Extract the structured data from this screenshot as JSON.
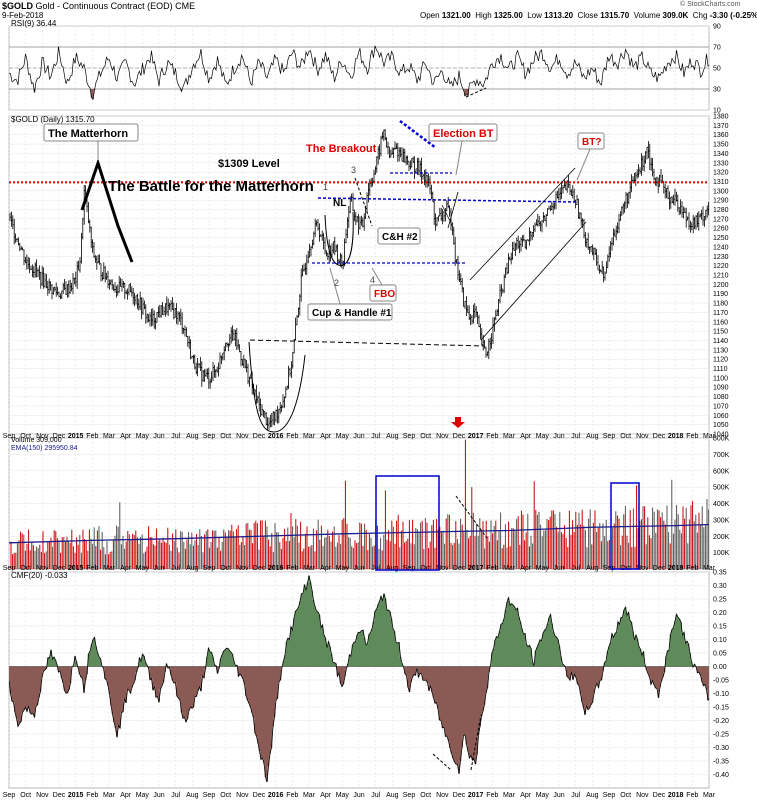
{
  "header": {
    "symbol": "$GOLD",
    "description": "Gold - Continuous Contract (EOD)",
    "exchange": "CME",
    "date": "9-Feb-2018",
    "open_label": "Open",
    "open": "1321.00",
    "high_label": "High",
    "high": "1325.00",
    "low_label": "Low",
    "low": "1313.20",
    "close_label": "Close",
    "close": "1315.70",
    "volume_label": "Volume",
    "volume": "309.0K",
    "chg_label": "Chg",
    "chg": "-3.30 (-0.25%)",
    "brand": "© StockCharts.com"
  },
  "panels": {
    "rsi_label": "RSI(9) 36.44",
    "price_label": "$GOLD (Daily) 1315.70",
    "volume_label": "Volume 309,000",
    "ema_label": "EMA(150) 295950.84",
    "cmf_label": "CMF(20) -0.033"
  },
  "annotations": {
    "matterhorn": "The Matterhorn",
    "level": "$1309 Level",
    "battle": "The Battle for the Matterhorn",
    "breakout": "The Breakout",
    "election_bt": "Election BT",
    "bt": "BT?",
    "nl": "NL",
    "ch2": "C&H #2",
    "fbo": "FBO",
    "ch1": "Cup & Handle #1",
    "n1": "1",
    "n2": "2",
    "n3": "3",
    "n4": "4"
  },
  "chart_data": {
    "type": "line",
    "colors": {
      "up": "#000000",
      "down": "#cc0000",
      "level": "#dd0000",
      "channel": "#0000cc",
      "pos_fill": "#5f8a5a",
      "neg_fill": "#8c5a55",
      "ema": "#1a1a8c"
    },
    "x_tick_labels": [
      "Sep",
      "Oct",
      "Nov",
      "Dec",
      "2015",
      "Feb",
      "Mar",
      "Apr",
      "May",
      "Jun",
      "Jul",
      "Aug",
      "Sep",
      "Oct",
      "Nov",
      "Dec",
      "2016",
      "Feb",
      "Mar",
      "Apr",
      "May",
      "Jun",
      "Jul",
      "Aug",
      "Sep",
      "Oct",
      "Nov",
      "Dec",
      "2017",
      "Feb",
      "Mar",
      "Apr",
      "May",
      "Jun",
      "Jul",
      "Aug",
      "Sep",
      "Oct",
      "Nov",
      "Dec",
      "2018",
      "Feb",
      "Mar"
    ],
    "price": {
      "ylim": [
        1040,
        1380
      ],
      "ticks": [
        1040,
        1050,
        1060,
        1070,
        1080,
        1090,
        1100,
        1110,
        1120,
        1130,
        1140,
        1150,
        1160,
        1170,
        1180,
        1190,
        1200,
        1210,
        1220,
        1230,
        1240,
        1250,
        1260,
        1270,
        1280,
        1290,
        1300,
        1310,
        1320,
        1330,
        1340,
        1350,
        1360,
        1370,
        1380
      ],
      "level": 1309,
      "path": [
        [
          0,
          1270
        ],
        [
          0.6,
          1245
        ],
        [
          1,
          1225
        ],
        [
          1.6,
          1215
        ],
        [
          2,
          1205
        ],
        [
          2.6,
          1195
        ],
        [
          3,
          1190
        ],
        [
          3.5,
          1195
        ],
        [
          4,
          1205
        ],
        [
          4.3,
          1230
        ],
        [
          4.5,
          1300
        ],
        [
          4.75,
          1270
        ],
        [
          5,
          1235
        ],
        [
          5.5,
          1215
        ],
        [
          6,
          1205
        ],
        [
          6.5,
          1195
        ],
        [
          7,
          1195
        ],
        [
          7.5,
          1190
        ],
        [
          8,
          1175
        ],
        [
          8.5,
          1160
        ],
        [
          9,
          1170
        ],
        [
          9.5,
          1175
        ],
        [
          10,
          1170
        ],
        [
          10.5,
          1155
        ],
        [
          11,
          1120
        ],
        [
          11.5,
          1105
        ],
        [
          12,
          1100
        ],
        [
          12.5,
          1110
        ],
        [
          13,
          1140
        ],
        [
          13.5,
          1145
        ],
        [
          14,
          1120
        ],
        [
          14.5,
          1095
        ],
        [
          15,
          1070
        ],
        [
          15.3,
          1060
        ],
        [
          15.6,
          1050
        ],
        [
          16,
          1060
        ],
        [
          16.5,
          1080
        ],
        [
          17,
          1120
        ],
        [
          17.5,
          1200
        ],
        [
          18,
          1240
        ],
        [
          18.5,
          1265
        ],
        [
          19,
          1235
        ],
        [
          19.5,
          1240
        ],
        [
          20,
          1220
        ],
        [
          20.3,
          1270
        ],
        [
          20.5,
          1290
        ],
        [
          20.8,
          1270
        ],
        [
          21.2,
          1260
        ],
        [
          21.5,
          1300
        ],
        [
          22,
          1325
        ],
        [
          22.3,
          1350
        ],
        [
          22.5,
          1365
        ],
        [
          22.8,
          1335
        ],
        [
          23.2,
          1345
        ],
        [
          23.5,
          1340
        ],
        [
          24,
          1330
        ],
        [
          24.5,
          1325
        ],
        [
          25,
          1315
        ],
        [
          25.3,
          1300
        ],
        [
          25.6,
          1265
        ],
        [
          26,
          1275
        ],
        [
          26.3,
          1280
        ],
        [
          26.6,
          1265
        ],
        [
          26.8,
          1225
        ],
        [
          27,
          1210
        ],
        [
          27.3,
          1180
        ],
        [
          27.6,
          1165
        ],
        [
          28,
          1170
        ],
        [
          28.3,
          1140
        ],
        [
          28.6,
          1125
        ],
        [
          29,
          1150
        ],
        [
          29.5,
          1190
        ],
        [
          30,
          1225
        ],
        [
          30.5,
          1245
        ],
        [
          31,
          1240
        ],
        [
          31.5,
          1265
        ],
        [
          32,
          1265
        ],
        [
          32.5,
          1285
        ],
        [
          33,
          1295
        ],
        [
          33.5,
          1305
        ],
        [
          34,
          1290
        ],
        [
          34.5,
          1255
        ],
        [
          35,
          1235
        ],
        [
          35.5,
          1215
        ],
        [
          35.8,
          1210
        ],
        [
          36,
          1235
        ],
        [
          36.5,
          1265
        ],
        [
          37,
          1290
        ],
        [
          37.5,
          1310
        ],
        [
          38,
          1330
        ],
        [
          38.3,
          1350
        ],
        [
          38.6,
          1320
        ],
        [
          39,
          1310
        ],
        [
          39.5,
          1295
        ],
        [
          40,
          1290
        ],
        [
          40.5,
          1275
        ],
        [
          41,
          1265
        ],
        [
          41.5,
          1270
        ],
        [
          42,
          1285
        ],
        [
          42.5,
          1290
        ],
        [
          43,
          1280
        ],
        [
          43.3,
          1255
        ],
        [
          43.6,
          1270
        ],
        [
          44,
          1295
        ],
        [
          44.5,
          1320
        ],
        [
          45,
          1340
        ],
        [
          45.3,
          1355
        ],
        [
          45.6,
          1340
        ],
        [
          46,
          1330
        ],
        [
          46.3,
          1315
        ]
      ]
    },
    "rsi": {
      "ylim": [
        10,
        90
      ],
      "ticks": [
        10,
        30,
        50,
        70,
        90
      ],
      "path": [
        [
          0,
          45
        ],
        [
          0.5,
          38
        ],
        [
          1,
          60
        ],
        [
          1.5,
          30
        ],
        [
          2,
          55
        ],
        [
          2.5,
          42
        ],
        [
          3,
          65
        ],
        [
          3.5,
          35
        ],
        [
          4,
          60
        ],
        [
          4.5,
          50
        ],
        [
          5,
          25
        ],
        [
          5.5,
          45
        ],
        [
          6,
          60
        ],
        [
          6.5,
          40
        ],
        [
          7,
          55
        ],
        [
          7.5,
          35
        ],
        [
          8,
          48
        ],
        [
          8.5,
          62
        ],
        [
          9,
          38
        ],
        [
          9.5,
          55
        ],
        [
          10,
          45
        ],
        [
          10.5,
          30
        ],
        [
          11,
          52
        ],
        [
          11.5,
          65
        ],
        [
          12,
          40
        ],
        [
          12.5,
          58
        ],
        [
          13,
          33
        ],
        [
          13.5,
          50
        ],
        [
          14,
          62
        ],
        [
          14.5,
          36
        ],
        [
          15,
          55
        ],
        [
          15.5,
          40
        ],
        [
          16,
          58
        ],
        [
          16.5,
          45
        ],
        [
          17,
          65
        ],
        [
          17.5,
          50
        ],
        [
          18,
          70
        ],
        [
          18.5,
          48
        ],
        [
          19,
          62
        ],
        [
          19.5,
          40
        ],
        [
          20,
          58
        ],
        [
          20.5,
          42
        ],
        [
          21,
          65
        ],
        [
          21.5,
          50
        ],
        [
          22,
          72
        ],
        [
          22.5,
          55
        ],
        [
          23,
          60
        ],
        [
          23.5,
          45
        ],
        [
          24,
          52
        ],
        [
          24.5,
          38
        ],
        [
          25,
          55
        ],
        [
          25.5,
          35
        ],
        [
          26,
          48
        ],
        [
          26.5,
          30
        ],
        [
          27,
          42
        ],
        [
          27.5,
          25
        ],
        [
          28,
          40
        ],
        [
          28.5,
          35
        ],
        [
          29,
          55
        ],
        [
          29.5,
          62
        ],
        [
          30,
          48
        ],
        [
          30.5,
          60
        ],
        [
          31,
          45
        ],
        [
          31.5,
          58
        ],
        [
          32,
          65
        ],
        [
          32.5,
          50
        ],
        [
          33,
          60
        ],
        [
          33.5,
          45
        ],
        [
          34,
          55
        ],
        [
          34.5,
          40
        ],
        [
          35,
          50
        ],
        [
          35.5,
          35
        ],
        [
          36,
          62
        ],
        [
          36.5,
          55
        ],
        [
          37,
          68
        ],
        [
          37.5,
          50
        ],
        [
          38,
          60
        ],
        [
          38.5,
          45
        ],
        [
          39,
          40
        ],
        [
          39.5,
          55
        ],
        [
          40,
          62
        ],
        [
          40.5,
          45
        ],
        [
          41,
          58
        ],
        [
          41.5,
          48
        ],
        [
          42,
          60
        ],
        [
          42.5,
          52
        ],
        [
          43,
          40
        ],
        [
          43.5,
          50
        ],
        [
          44,
          65
        ],
        [
          44.5,
          72
        ],
        [
          45,
          80
        ],
        [
          45.5,
          60
        ],
        [
          46,
          45
        ],
        [
          46.3,
          36
        ]
      ]
    },
    "volume": {
      "ylim": [
        0,
        800
      ],
      "ticks": [
        100,
        200,
        300,
        400,
        500,
        600,
        700,
        800
      ],
      "tick_labels": [
        "100K",
        "200K",
        "300K",
        "400K",
        "500K",
        "600K",
        "700K",
        "800K"
      ],
      "ema_path": [
        [
          0,
          160
        ],
        [
          5,
          175
        ],
        [
          10,
          185
        ],
        [
          15,
          200
        ],
        [
          20,
          215
        ],
        [
          25,
          225
        ],
        [
          27,
          230
        ],
        [
          30,
          235
        ],
        [
          35,
          255
        ],
        [
          40,
          265
        ],
        [
          43,
          275
        ],
        [
          46.3,
          296
        ]
      ],
      "spikes": [
        [
          20.2,
          540
        ],
        [
          22.6,
          480
        ],
        [
          27.4,
          790
        ],
        [
          27.8,
          500
        ],
        [
          39.8,
          545
        ],
        [
          45.5,
          520
        ]
      ]
    },
    "cmf": {
      "ylim": [
        -0.45,
        0.35
      ],
      "ticks": [
        -0.4,
        -0.35,
        -0.3,
        -0.25,
        -0.2,
        -0.15,
        -0.1,
        -0.05,
        0.0,
        0.05,
        0.1,
        0.15,
        0.2,
        0.25,
        0.3,
        0.35
      ],
      "tick_labels": [
        "-0.40",
        "-0.35",
        "-0.30",
        "-0.25",
        "-0.20",
        "-0.15",
        "-0.10",
        "-0.05",
        "0.00",
        "0.05",
        "0.10",
        "0.15",
        "0.20",
        "0.25",
        "0.30",
        "0.35"
      ],
      "path": [
        [
          0,
          -0.05
        ],
        [
          0.5,
          -0.22
        ],
        [
          1,
          -0.15
        ],
        [
          1.5,
          -0.18
        ],
        [
          2,
          -0.05
        ],
        [
          2.5,
          0.05
        ],
        [
          3,
          -0.02
        ],
        [
          3.5,
          -0.1
        ],
        [
          4,
          0.05
        ],
        [
          4.5,
          -0.08
        ],
        [
          5,
          0.12
        ],
        [
          5.5,
          0.04
        ],
        [
          6,
          -0.1
        ],
        [
          6.5,
          -0.25
        ],
        [
          7,
          -0.12
        ],
        [
          7.5,
          -0.05
        ],
        [
          8,
          0.05
        ],
        [
          8.5,
          -0.05
        ],
        [
          9,
          -0.12
        ],
        [
          9.5,
          0.02
        ],
        [
          10,
          -0.08
        ],
        [
          10.5,
          -0.2
        ],
        [
          11,
          -0.15
        ],
        [
          11.5,
          -0.08
        ],
        [
          12,
          0.06
        ],
        [
          12.5,
          -0.02
        ],
        [
          13,
          0.08
        ],
        [
          13.5,
          0.02
        ],
        [
          14,
          -0.05
        ],
        [
          14.5,
          -0.15
        ],
        [
          15,
          -0.3
        ],
        [
          15.5,
          -0.42
        ],
        [
          16,
          -0.15
        ],
        [
          16.5,
          0.05
        ],
        [
          17,
          0.15
        ],
        [
          17.5,
          0.25
        ],
        [
          18,
          0.33
        ],
        [
          18.5,
          0.2
        ],
        [
          19,
          0.1
        ],
        [
          19.5,
          0.02
        ],
        [
          20,
          -0.08
        ],
        [
          20.5,
          0.05
        ],
        [
          21,
          0.15
        ],
        [
          21.5,
          0.08
        ],
        [
          22,
          0.2
        ],
        [
          22.5,
          0.27
        ],
        [
          23,
          0.15
        ],
        [
          23.5,
          0.05
        ],
        [
          24,
          -0.08
        ],
        [
          24.5,
          -0.02
        ],
        [
          25,
          -0.05
        ],
        [
          25.5,
          -0.12
        ],
        [
          26,
          -0.22
        ],
        [
          26.5,
          -0.3
        ],
        [
          27,
          -0.38
        ],
        [
          27.3,
          -0.25
        ],
        [
          27.6,
          -0.32
        ],
        [
          28,
          -0.36
        ],
        [
          28.3,
          -0.2
        ],
        [
          28.6,
          -0.1
        ],
        [
          29,
          0.05
        ],
        [
          29.5,
          0.15
        ],
        [
          30,
          0.25
        ],
        [
          30.5,
          0.2
        ],
        [
          31,
          0.1
        ],
        [
          31.5,
          0.02
        ],
        [
          32,
          0.12
        ],
        [
          32.5,
          0.18
        ],
        [
          33,
          0.08
        ],
        [
          33.5,
          -0.05
        ],
        [
          34,
          -0.02
        ],
        [
          34.5,
          -0.18
        ],
        [
          35,
          -0.12
        ],
        [
          35.5,
          -0.05
        ],
        [
          36,
          0.08
        ],
        [
          36.5,
          0.15
        ],
        [
          37,
          0.22
        ],
        [
          37.5,
          0.12
        ],
        [
          38,
          0.05
        ],
        [
          38.5,
          -0.05
        ],
        [
          39,
          -0.1
        ],
        [
          39.5,
          0.05
        ],
        [
          40,
          0.2
        ],
        [
          40.5,
          0.12
        ],
        [
          41,
          0.02
        ],
        [
          41.5,
          -0.05
        ],
        [
          42,
          -0.12
        ],
        [
          42.5,
          -0.08
        ],
        [
          43,
          0.05
        ],
        [
          43.5,
          0.15
        ],
        [
          44,
          0.25
        ],
        [
          44.5,
          0.34
        ],
        [
          45,
          0.3
        ],
        [
          45.5,
          0.15
        ],
        [
          46,
          0.02
        ],
        [
          46.3,
          -0.033
        ]
      ]
    }
  }
}
